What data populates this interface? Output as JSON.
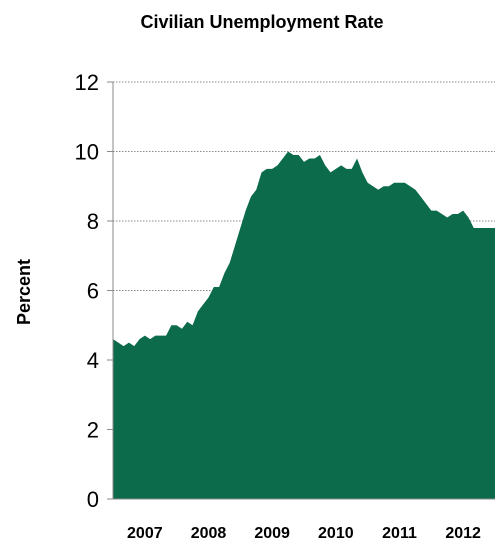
{
  "chart_data": {
    "type": "area",
    "title": "Civilian Unemployment Rate",
    "xlabel": "",
    "ylabel": "Percent",
    "ylim": [
      0,
      12
    ],
    "yticks": [
      "0",
      "2",
      "4",
      "6",
      "8",
      "10",
      "12"
    ],
    "xlim": [
      "2007-01",
      "2012-12"
    ],
    "xticks": [
      "2007",
      "2008",
      "2009",
      "2010",
      "2011",
      "2012"
    ],
    "grid": "horizontal dotted",
    "legend": "none",
    "fill_color": "#0b6b4a",
    "series": [
      {
        "x": [
          "2007-01",
          "2007-02",
          "2007-03",
          "2007-04",
          "2007-05",
          "2007-06",
          "2007-07",
          "2007-08",
          "2007-09",
          "2007-10",
          "2007-11",
          "2007-12",
          "2008-01",
          "2008-02",
          "2008-03",
          "2008-04",
          "2008-05",
          "2008-06",
          "2008-07",
          "2008-08",
          "2008-09",
          "2008-10",
          "2008-11",
          "2008-12",
          "2009-01",
          "2009-02",
          "2009-03",
          "2009-04",
          "2009-05",
          "2009-06",
          "2009-07",
          "2009-08",
          "2009-09",
          "2009-10",
          "2009-11",
          "2009-12",
          "2010-01",
          "2010-02",
          "2010-03",
          "2010-04",
          "2010-05",
          "2010-06",
          "2010-07",
          "2010-08",
          "2010-09",
          "2010-10",
          "2010-11",
          "2010-12",
          "2011-01",
          "2011-02",
          "2011-03",
          "2011-04",
          "2011-05",
          "2011-06",
          "2011-07",
          "2011-08",
          "2011-09",
          "2011-10",
          "2011-11",
          "2011-12",
          "2012-01",
          "2012-02",
          "2012-03",
          "2012-04",
          "2012-05",
          "2012-06",
          "2012-07",
          "2012-08",
          "2012-09"
        ],
        "values": [
          4.6,
          4.5,
          4.4,
          4.5,
          4.4,
          4.6,
          4.7,
          4.6,
          4.7,
          4.7,
          4.7,
          5.0,
          5.0,
          4.9,
          5.1,
          5.0,
          5.4,
          5.6,
          5.8,
          6.1,
          6.1,
          6.5,
          6.8,
          7.3,
          7.8,
          8.3,
          8.7,
          8.9,
          9.4,
          9.5,
          9.5,
          9.6,
          9.8,
          10.0,
          9.9,
          9.9,
          9.7,
          9.8,
          9.8,
          9.9,
          9.6,
          9.4,
          9.5,
          9.6,
          9.5,
          9.5,
          9.8,
          9.4,
          9.1,
          9.0,
          8.9,
          9.0,
          9.0,
          9.1,
          9.1,
          9.1,
          9.0,
          8.9,
          8.7,
          8.5,
          8.3,
          8.3,
          8.2,
          8.1,
          8.2,
          8.2,
          8.3,
          8.1,
          7.8
        ]
      }
    ]
  }
}
